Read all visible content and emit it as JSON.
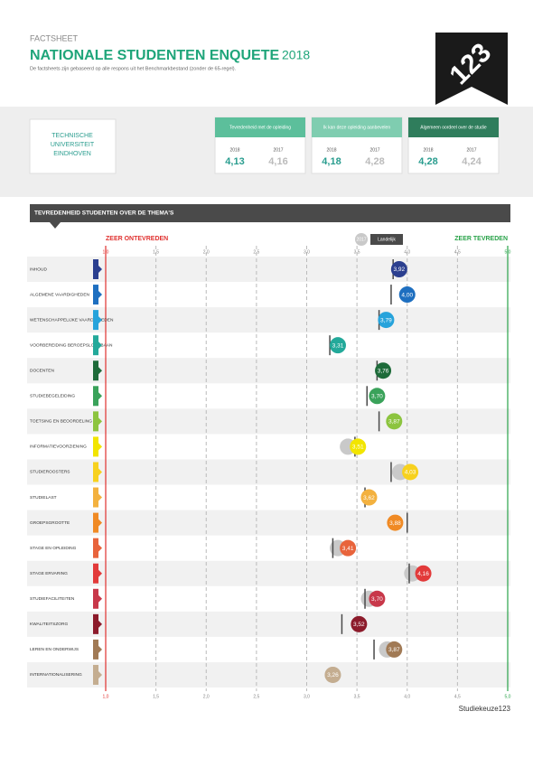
{
  "header": {
    "kicker": "FACTSHEET",
    "title": "NATIONALE STUDENTEN ENQUETE",
    "year": "2018",
    "subtitle": "De factsheets zijn gebaseerd op alle respons uit het Benchmarkbestand (zonder de 65-regel)."
  },
  "logo": "123",
  "institution": [
    "TECHNISCHE",
    "UNIVERSITEIT",
    "EINDHOVEN"
  ],
  "kpis": [
    {
      "label": "Tevredenheid met de opleiding",
      "color": "#5cbf9b",
      "y1": "2018",
      "v1": "4,13",
      "y2": "2017",
      "v2": "4,16"
    },
    {
      "label": "Ik kan deze opleiding aanbevelen",
      "color": "#7fcdb0",
      "y1": "2018",
      "v1": "4,18",
      "y2": "2017",
      "v2": "4,28"
    },
    {
      "label": "Algemeen oordeel over de studie",
      "color": "#2f7d5c",
      "y1": "2018",
      "v1": "4,28",
      "y2": "2017",
      "v2": "4,24"
    }
  ],
  "section": "TEVREDENHEID STUDENTEN OVER DE THEMA'S",
  "chart_data": {
    "type": "dot",
    "left_label": "ZEER ONTEVREDEN",
    "right_label": "ZEER TEVREDEN",
    "categories": [
      "INHOUD",
      "ALGEMENE VAARDIGHEDEN",
      "WETENSCHAPPELIJKE VAARDIGHEDEN",
      "VOORBEREIDING BEROEPSLOOPBAAN",
      "DOCENTEN",
      "STUDIEBEGELEIDING",
      "TOETSING EN BEOORDELING",
      "INFORMATIEVOORZIENING",
      "STUDIEROOSTERS",
      "STUDIELAST",
      "GROEPSGROOTTE",
      "STAGE EN OPLEIDING",
      "STAGE ERVARING",
      "STUDIEFACILITEITEN",
      "KWALITEITSZORG",
      "LEREN EN ONDERWIJS",
      "INTERNATIONALISERING"
    ],
    "series": [
      {
        "colors": [
          "#2b3f8f",
          "#1e6fc0",
          "#27a3db",
          "#23a99a",
          "#1e6b3a",
          "#3aa25a",
          "#8cc43f",
          "#f2e500",
          "#f7d11e",
          "#f3b13f",
          "#f08a24",
          "#e8643c",
          "#e23a3a",
          "#c8384a",
          "#8c1b2b",
          "#a17a55",
          "#c4ad90"
        ],
        "values": [
          3.92,
          4.0,
          3.79,
          3.31,
          3.76,
          3.7,
          3.87,
          3.51,
          4.03,
          3.62,
          3.88,
          3.41,
          4.16,
          3.7,
          3.52,
          3.87,
          3.26
        ],
        "value_labels": [
          "3,92",
          "4,00",
          "3,79",
          "3,31",
          "3,76",
          "3,70",
          "3,87",
          "3,51",
          "4,03",
          "3,62",
          "3,88",
          "3,41",
          "4,16",
          "3,70",
          "3,52",
          "3,87",
          "3,26"
        ]
      },
      {
        "name": "2017",
        "color": "#c9c9c9",
        "values": [
          null,
          null,
          null,
          null,
          null,
          null,
          null,
          3.41,
          3.93,
          null,
          null,
          3.31,
          4.05,
          3.62,
          null,
          3.8,
          3.26
        ]
      },
      {
        "name": "Landelijk",
        "color": "#4a4a4a",
        "values": [
          3.86,
          3.84,
          3.72,
          3.23,
          3.7,
          3.6,
          3.72,
          3.48,
          3.84,
          3.58,
          4.0,
          3.26,
          4.02,
          3.58,
          3.35,
          3.67,
          null
        ]
      }
    ],
    "xlim": [
      1,
      5
    ],
    "xticks": [
      {
        "value": 1,
        "label": "1,0"
      },
      {
        "value": 1.5,
        "label": "1,5"
      },
      {
        "value": 2,
        "label": "2,0"
      },
      {
        "value": 2.5,
        "label": "2,5"
      },
      {
        "value": 3,
        "label": "3,0"
      },
      {
        "value": 3.5,
        "label": "3,5"
      },
      {
        "value": 4,
        "label": "4,0"
      },
      {
        "value": 4.5,
        "label": "4,5"
      },
      {
        "value": 5,
        "label": "5,0"
      }
    ],
    "brand": "Studiekeuze123"
  }
}
